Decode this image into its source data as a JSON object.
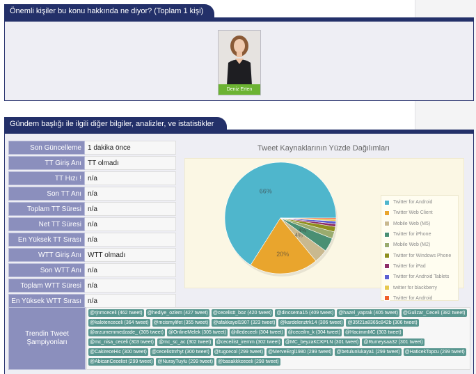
{
  "important_people": {
    "title": "Önemli kişiler bu konu hakkında ne diyor? (Toplam 1 kişi)",
    "person_name": "Deniz Erten"
  },
  "stats_section": {
    "title": "Gündem başlığı ile ilgili diğer bilgiler, analizler, ve istatistikler",
    "rows": [
      {
        "label": "Son Güncelleme",
        "value": "1 dakika önce"
      },
      {
        "label": "TT Giriş Anı",
        "value": "TT olmadı"
      },
      {
        "label": "TT Hızı !",
        "value": "n/a"
      },
      {
        "label": "Son TT Anı",
        "value": "n/a"
      },
      {
        "label": "Toplam TT Süresi",
        "value": "n/a"
      },
      {
        "label": "Net TT Süresi",
        "value": "n/a"
      },
      {
        "label": "En Yüksek TT Sırası",
        "value": "n/a"
      },
      {
        "label": "WTT Giriş Anı",
        "value": "WTT olmadı"
      },
      {
        "label": "Son WTT Anı",
        "value": "n/a"
      },
      {
        "label": "Toplam WTT Süresi",
        "value": "n/a"
      },
      {
        "label": "En Yüksek WTT Sırası",
        "value": "n/a"
      }
    ],
    "champion_label": "Trendin Tweet Şampiyonları",
    "champions": [
      "@rjnmceceli (462 tweet)",
      "@hediye_ozlem (427 tweet)",
      "@cecelistt_boz (420 tweet)",
      "@dincsema15 (409 tweet)",
      "@hazel_yaprak (405 tweet)",
      "@Gulizar_Ceceli (382 tweet)",
      "@kalotenceceli (364 tweet)",
      "@mcismylifet (355 tweet)",
      "@afakkayol1907 (323 tweet)",
      "@kardelenztrk14 (306 tweet)",
      "@35f21a8365c842b (306 tweet)",
      "@arzumemmedzade_ (305 tweet)",
      "@OnlineMelek (305 tweet)",
      "@illedeceeli (304 tweet)",
      "@ceceilm_k (304 tweet)",
      "@HacimmMC (303 tweet)",
      "@mc_nisa_ceceli (303 tweet)",
      "@mc_sc_ac (302 tweet)",
      "@ceceilist_iremm (302 tweet)",
      "@MC_beyzaKCKPLN (301 tweet)",
      "@Rumeysaa32 (301 tweet)",
      "@CakireceHic (300 tweet)",
      "@cecelistnrhyt (300 tweet)",
      "@tugcecol (299 tweet)",
      "@MerveErgl1980 (299 tweet)",
      "@betulunlukaya1 (299 tweet)",
      "@HaticekTopcu (299 tweet)",
      "@AbicanCecelist (299 tweet)",
      "@NurayTuylu (299 tweet)",
      "@basakkkceceli (298 tweet)"
    ]
  },
  "chart_data": {
    "type": "pie",
    "title": "Tweet Kaynaklarının Yüzde Dağılımları",
    "legend_position": "right",
    "series": [
      {
        "name": "Twitter for Android",
        "value": 66,
        "label": "66%",
        "color": "#4fb6cc"
      },
      {
        "name": "Twitter Web Client",
        "value": 20,
        "label": "20%",
        "color": "#e9a52d"
      },
      {
        "name": "Mobile Web (M5)",
        "value": 4,
        "label": "4%",
        "color": "#c9b98f"
      },
      {
        "name": "Twitter for iPhone",
        "value": 4,
        "label": "4%",
        "color": "#4a8f73"
      },
      {
        "name": "Mobile Web (M2)",
        "value": 2,
        "label": "",
        "color": "#9aab6e"
      },
      {
        "name": "Twitter for Windows Phone",
        "value": 1.5,
        "label": "",
        "color": "#8f8f1e"
      },
      {
        "name": "Twitter for iPad",
        "value": 0.8,
        "label": "",
        "color": "#8d2e66"
      },
      {
        "name": "Twitter for Android Tablets",
        "value": 0.8,
        "label": "",
        "color": "#5a5fd1"
      },
      {
        "name": "twitter for blackberry",
        "value": 0.5,
        "label": "",
        "color": "#e7c84e"
      },
      {
        "name": "Twitter for Android",
        "value": 0.4,
        "label": "",
        "color": "#f0602a"
      }
    ]
  }
}
